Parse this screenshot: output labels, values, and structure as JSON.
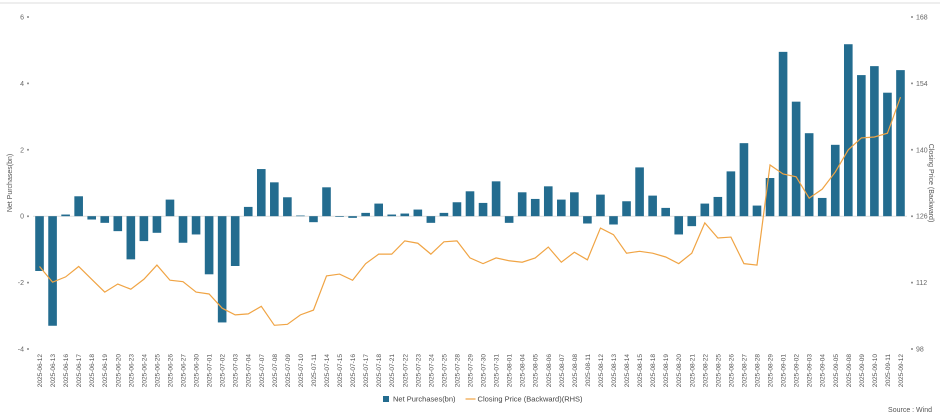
{
  "chart_data": {
    "type": "bar_line",
    "y_label": "Net Purchases(bn)",
    "y2_label": "Closing Price (Backward)",
    "source": "Source : Wind",
    "categories": [
      "2025-06-12",
      "2025-06-13",
      "2025-06-16",
      "2025-06-17",
      "2025-06-18",
      "2025-06-19",
      "2025-06-20",
      "2025-06-23",
      "2025-06-24",
      "2025-06-25",
      "2025-06-26",
      "2025-06-27",
      "2025-06-30",
      "2025-07-01",
      "2025-07-02",
      "2025-07-03",
      "2025-07-04",
      "2025-07-07",
      "2025-07-08",
      "2025-07-09",
      "2025-07-10",
      "2025-07-11",
      "2025-07-14",
      "2025-07-15",
      "2025-07-16",
      "2025-07-17",
      "2025-07-18",
      "2025-07-21",
      "2025-07-22",
      "2025-07-23",
      "2025-07-24",
      "2025-07-25",
      "2025-07-28",
      "2025-07-29",
      "2025-07-30",
      "2025-07-31",
      "2025-08-01",
      "2025-08-04",
      "2025-08-05",
      "2025-08-06",
      "2025-08-07",
      "2025-08-08",
      "2025-08-11",
      "2025-08-12",
      "2025-08-13",
      "2025-08-14",
      "2025-08-15",
      "2025-08-18",
      "2025-08-19",
      "2025-08-20",
      "2025-08-21",
      "2025-08-22",
      "2025-08-25",
      "2025-08-26",
      "2025-08-27",
      "2025-08-28",
      "2025-08-29",
      "2025-09-01",
      "2025-09-02",
      "2025-09-03",
      "2025-09-04",
      "2025-09-05",
      "2025-09-08",
      "2025-09-09",
      "2025-09-10",
      "2025-09-11",
      "2025-09-12"
    ],
    "series": [
      {
        "name": "Net Purchases(bn)",
        "type": "bar",
        "color": "#236c8f",
        "values": [
          -1.65,
          -3.3,
          0.05,
          0.6,
          -0.1,
          -0.2,
          -0.45,
          -1.3,
          -0.75,
          -0.5,
          0.5,
          -0.8,
          -0.55,
          -1.75,
          -3.2,
          -1.5,
          0.28,
          1.42,
          1.02,
          0.57,
          0.02,
          -0.18,
          0.87,
          -0.02,
          -0.05,
          0.1,
          0.38,
          0.05,
          0.08,
          0.2,
          -0.2,
          0.1,
          0.42,
          0.75,
          0.4,
          1.05,
          -0.2,
          0.72,
          0.52,
          0.9,
          0.5,
          0.72,
          -0.22,
          0.65,
          -0.25,
          0.45,
          1.47,
          0.62,
          0.25,
          -0.55,
          -0.3,
          0.38,
          0.58,
          1.35,
          2.2,
          0.32,
          1.15,
          4.95,
          3.45,
          2.5,
          0.55,
          2.15,
          5.18,
          4.25,
          4.52,
          3.72,
          4.4
        ]
      },
      {
        "name": "Closing Price (Backward)(RHS)",
        "type": "line",
        "axis": "y2",
        "color": "#f0a444",
        "values": [
          115.4,
          112.1,
          113.2,
          115.4,
          112.7,
          110,
          111.7,
          110.6,
          112.7,
          115.7,
          112.5,
          112.2,
          110,
          109.6,
          106.6,
          105.2,
          105.4,
          107,
          103,
          103.2,
          105.2,
          106.2,
          113.4,
          113.8,
          112.5,
          116,
          118,
          118,
          120.8,
          120.3,
          118,
          120.6,
          120.8,
          117.2,
          116,
          117.2,
          116.6,
          116.3,
          117.2,
          119.5,
          116.3,
          118.4,
          116.8,
          123.5,
          122.1,
          118.2,
          118.6,
          118.2,
          117.4,
          116,
          118.2,
          124.6,
          121.4,
          121.6,
          116,
          115.7,
          136.8,
          134.9,
          134.3,
          129.8,
          131.7,
          135.3,
          140,
          142.5,
          142.7,
          143.5,
          151.1
        ]
      }
    ],
    "ylim": [
      -4,
      6
    ],
    "yticks": [
      -4,
      -2,
      0,
      2,
      4,
      6
    ],
    "y2lim": [
      98,
      168
    ],
    "y2ticks": [
      98,
      112,
      126,
      140,
      154,
      168
    ],
    "grid": false
  }
}
